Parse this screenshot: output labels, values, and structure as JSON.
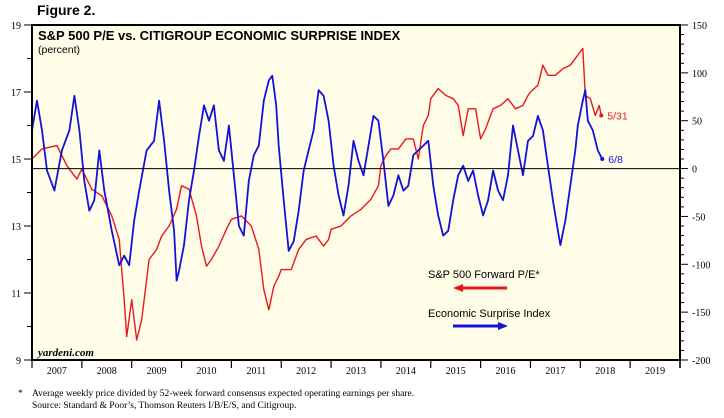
{
  "figure_label": "Figure 2.",
  "footnotes": {
    "marker": "*",
    "note": "Average weekly price divided by 52-week forward consensus expected operating earnings per share.",
    "source": "Source: Standard & Poor’s, Thomson Reuters I/B/E/S, and Citigroup."
  },
  "chart_data": {
    "type": "line",
    "title": "S&P 500 P/E vs. CITIGROUP ECONOMIC SURPRISE INDEX",
    "subtitle": "(percent)",
    "watermark": "yardeni.com",
    "xlabel": "",
    "x_tick_labels": [
      "2007",
      "2008",
      "2009",
      "2010",
      "2011",
      "2012",
      "2013",
      "2014",
      "2015",
      "2016",
      "2017",
      "2018",
      "2019"
    ],
    "xlim": [
      2007,
      2020
    ],
    "y_left": {
      "label": "",
      "lim": [
        9,
        19
      ],
      "ticks": [
        9,
        11,
        13,
        15,
        17,
        19
      ]
    },
    "y_right": {
      "label": "",
      "lim": [
        -200,
        150
      ],
      "ticks": [
        -200,
        -150,
        -100,
        -50,
        0,
        50,
        100,
        150
      ]
    },
    "reference_line": {
      "axis": "right",
      "value": 0
    },
    "grid": false,
    "legend": [
      {
        "name": "S&P 500 Forward P/E*",
        "color": "#e8191d",
        "arrow": "left"
      },
      {
        "name": "Economic Surprise Index",
        "color": "#1212d8",
        "arrow": "right"
      }
    ],
    "legend_placement": "bottom-right",
    "series": [
      {
        "name": "S&P 500 Forward P/E*",
        "axis": "left",
        "color": "#e8191d",
        "end_label": "5/31",
        "x": [
          2007.0,
          2007.2,
          2007.5,
          2007.7,
          2007.9,
          2008.0,
          2008.2,
          2008.4,
          2008.6,
          2008.75,
          2008.85,
          2008.9,
          2009.0,
          2009.1,
          2009.2,
          2009.35,
          2009.5,
          2009.6,
          2009.75,
          2009.9,
          2010.0,
          2010.15,
          2010.3,
          2010.4,
          2010.5,
          2010.6,
          2010.75,
          2010.9,
          2011.0,
          2011.2,
          2011.4,
          2011.55,
          2011.65,
          2011.75,
          2011.85,
          2011.95,
          2012.0,
          2012.2,
          2012.35,
          2012.5,
          2012.7,
          2012.85,
          2012.95,
          2013.0,
          2013.2,
          2013.4,
          2013.6,
          2013.8,
          2013.95,
          2014.0,
          2014.1,
          2014.2,
          2014.35,
          2014.5,
          2014.65,
          2014.75,
          2014.85,
          2014.95,
          2015.0,
          2015.15,
          2015.3,
          2015.45,
          2015.55,
          2015.65,
          2015.75,
          2015.9,
          2016.0,
          2016.1,
          2016.25,
          2016.4,
          2016.55,
          2016.7,
          2016.85,
          2016.95,
          2017.0,
          2017.15,
          2017.25,
          2017.35,
          2017.5,
          2017.65,
          2017.8,
          2017.95,
          2018.05,
          2018.1,
          2018.2,
          2018.3,
          2018.38,
          2018.42
        ],
        "values": [
          15.0,
          15.3,
          15.4,
          14.8,
          14.4,
          14.7,
          14.1,
          13.9,
          13.3,
          12.6,
          10.8,
          9.7,
          10.8,
          9.6,
          10.2,
          12.0,
          12.3,
          12.7,
          13.0,
          13.5,
          14.2,
          14.1,
          13.3,
          12.4,
          11.8,
          12.0,
          12.4,
          12.9,
          13.2,
          13.3,
          13.0,
          12.3,
          11.1,
          10.5,
          11.2,
          11.5,
          11.7,
          11.7,
          12.3,
          12.6,
          12.7,
          12.4,
          12.6,
          12.9,
          13.0,
          13.3,
          13.5,
          13.8,
          14.2,
          14.8,
          15.1,
          15.3,
          15.3,
          15.6,
          15.6,
          15.0,
          16.0,
          16.3,
          16.8,
          17.1,
          16.9,
          16.8,
          16.6,
          15.7,
          16.5,
          16.5,
          15.6,
          15.9,
          16.5,
          16.6,
          16.8,
          16.5,
          16.6,
          16.9,
          17.0,
          17.2,
          17.8,
          17.5,
          17.5,
          17.7,
          17.8,
          18.1,
          18.3,
          16.9,
          16.8,
          16.3,
          16.6,
          16.3
        ]
      },
      {
        "name": "Economic Surprise Index",
        "axis": "right",
        "color": "#1212d8",
        "end_label": "6/8",
        "x": [
          2007.0,
          2007.1,
          2007.2,
          2007.3,
          2007.45,
          2007.6,
          2007.75,
          2007.85,
          2007.95,
          2008.05,
          2008.15,
          2008.25,
          2008.35,
          2008.45,
          2008.6,
          2008.75,
          2008.85,
          2008.95,
          2009.05,
          2009.15,
          2009.3,
          2009.45,
          2009.55,
          2009.65,
          2009.75,
          2009.85,
          2009.9,
          2009.95,
          2010.05,
          2010.15,
          2010.25,
          2010.35,
          2010.45,
          2010.55,
          2010.65,
          2010.75,
          2010.85,
          2010.95,
          2011.05,
          2011.15,
          2011.25,
          2011.35,
          2011.45,
          2011.55,
          2011.65,
          2011.75,
          2011.82,
          2011.9,
          2011.95,
          2012.05,
          2012.15,
          2012.25,
          2012.35,
          2012.45,
          2012.55,
          2012.65,
          2012.75,
          2012.85,
          2012.95,
          2013.05,
          2013.15,
          2013.25,
          2013.35,
          2013.45,
          2013.55,
          2013.65,
          2013.75,
          2013.85,
          2013.95,
          2014.05,
          2014.15,
          2014.25,
          2014.35,
          2014.45,
          2014.55,
          2014.65,
          2014.75,
          2014.85,
          2014.95,
          2015.05,
          2015.15,
          2015.25,
          2015.35,
          2015.45,
          2015.55,
          2015.65,
          2015.75,
          2015.85,
          2015.95,
          2016.05,
          2016.15,
          2016.25,
          2016.35,
          2016.45,
          2016.55,
          2016.65,
          2016.75,
          2016.85,
          2016.95,
          2017.05,
          2017.15,
          2017.25,
          2017.35,
          2017.45,
          2017.55,
          2017.6,
          2017.7,
          2017.8,
          2017.9,
          2017.95,
          2018.05,
          2018.1,
          2018.15,
          2018.25,
          2018.35,
          2018.44
        ],
        "values": [
          40,
          71,
          40,
          -2,
          -23,
          19,
          40,
          76,
          40,
          -13,
          -44,
          -33,
          19,
          -23,
          -65,
          -101,
          -91,
          -101,
          -54,
          -23,
          19,
          29,
          71,
          29,
          -23,
          -65,
          -117,
          -107,
          -80,
          -33,
          -2,
          34,
          66,
          50,
          66,
          19,
          8,
          45,
          -7,
          -60,
          -70,
          -13,
          14,
          24,
          71,
          92,
          97,
          66,
          24,
          -33,
          -86,
          -76,
          -44,
          -2,
          19,
          40,
          82,
          76,
          50,
          3,
          -28,
          -49,
          -18,
          29,
          8,
          -7,
          24,
          55,
          50,
          8,
          -39,
          -28,
          -7,
          -23,
          -18,
          14,
          19,
          24,
          29,
          -18,
          -49,
          -70,
          -65,
          -33,
          -7,
          3,
          -13,
          -2,
          -28,
          -49,
          -33,
          -2,
          -23,
          -33,
          -7,
          45,
          19,
          -7,
          29,
          34,
          55,
          40,
          3,
          -33,
          -65,
          -80,
          -54,
          -18,
          19,
          45,
          71,
          82,
          50,
          40,
          19,
          10
        ]
      }
    ]
  }
}
